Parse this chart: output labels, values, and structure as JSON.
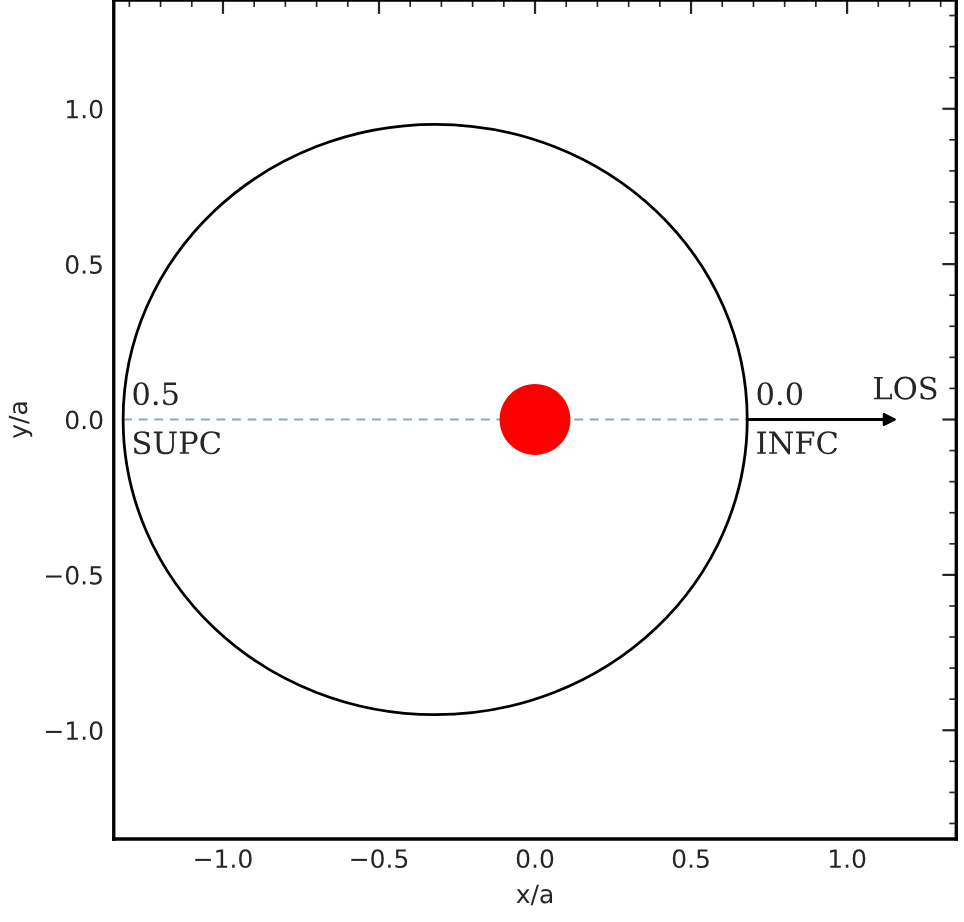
{
  "chart_data": {
    "type": "line",
    "xlabel": "x/a",
    "ylabel": "y/a",
    "xlim": [
      -1.35,
      1.35
    ],
    "ylim": [
      -1.35,
      1.35
    ],
    "xticks": [
      {
        "value": -1.0,
        "label": "−1.0"
      },
      {
        "value": -0.5,
        "label": "−0.5"
      },
      {
        "value": 0.0,
        "label": "0.0"
      },
      {
        "value": 0.5,
        "label": "0.5"
      },
      {
        "value": 1.0,
        "label": "1.0"
      }
    ],
    "yticks": [
      {
        "value": -1.0,
        "label": "−1.0"
      },
      {
        "value": -0.5,
        "label": "−0.5"
      },
      {
        "value": 0.0,
        "label": "0.0"
      },
      {
        "value": 0.5,
        "label": "0.5"
      },
      {
        "value": 1.0,
        "label": "1.0"
      }
    ],
    "grid": false,
    "legend": false,
    "series": [
      {
        "color": "#8fa8c0",
        "line_style": "dashed",
        "marker": "none",
        "x": [
          -1.32,
          0.68
        ],
        "values": [
          0.0,
          0.0
        ]
      },
      {
        "type": "scatter",
        "color": "#ff0000",
        "marker": "circle",
        "x": [
          0.0
        ],
        "values": [
          0.0
        ]
      }
    ],
    "annotations": [
      "0.5",
      "SUPC",
      "0.0",
      "INFC",
      {
        "text": "LOS",
        "x": 0.68,
        "y": 0.0
      }
    ]
  }
}
